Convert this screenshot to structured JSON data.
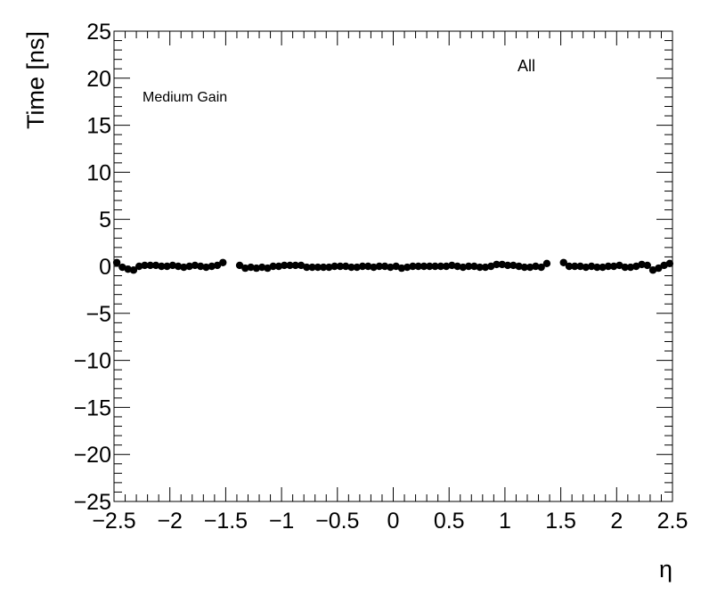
{
  "chart_data": {
    "type": "scatter",
    "title": "",
    "xlabel": "η",
    "ylabel": "Time [ns]",
    "xlim": [
      -2.5,
      2.5
    ],
    "ylim": [
      -25,
      25
    ],
    "x_ticks": [
      -2.5,
      -2,
      -1.5,
      -1,
      -0.5,
      0,
      0.5,
      1,
      1.5,
      2,
      2.5
    ],
    "x_tick_labels": [
      "−2.5",
      "−2",
      "−1.5",
      "−1",
      "−0.5",
      "0",
      "0.5",
      "1",
      "1.5",
      "2",
      "2.5"
    ],
    "y_ticks": [
      -25,
      -20,
      -15,
      -10,
      -5,
      0,
      5,
      10,
      15,
      20,
      25
    ],
    "y_tick_labels": [
      "−25",
      "−20",
      "−15",
      "−10",
      "−5",
      "0",
      "5",
      "10",
      "15",
      "20",
      "25"
    ],
    "grid": false,
    "marker_color": "#000000",
    "annotations": [
      "Medium Gain",
      "All"
    ],
    "x_start": -2.475,
    "x_step": 0.05,
    "values": [
      0.4,
      -0.1,
      -0.3,
      -0.4,
      0.0,
      0.1,
      0.1,
      0.1,
      0.0,
      0.0,
      0.1,
      0.0,
      -0.1,
      0.0,
      0.1,
      0.0,
      -0.1,
      0.0,
      0.1,
      0.4,
      null,
      null,
      0.1,
      -0.2,
      -0.1,
      -0.2,
      -0.1,
      -0.2,
      0.0,
      0.0,
      0.1,
      0.1,
      0.1,
      0.1,
      -0.1,
      -0.1,
      -0.1,
      -0.1,
      -0.1,
      0.0,
      0.0,
      0.0,
      -0.1,
      -0.1,
      0.0,
      0.0,
      -0.1,
      0.0,
      0.0,
      -0.1,
      0.0,
      -0.2,
      -0.1,
      0.0,
      0.0,
      0.0,
      0.0,
      0.0,
      0.0,
      0.0,
      0.1,
      0.0,
      -0.1,
      0.0,
      0.0,
      -0.1,
      -0.1,
      0.0,
      0.2,
      0.2,
      0.1,
      0.1,
      0.0,
      -0.1,
      -0.1,
      0.0,
      -0.1,
      0.3,
      null,
      null,
      0.4,
      0.0,
      0.0,
      0.0,
      -0.1,
      0.0,
      -0.1,
      -0.1,
      0.0,
      0.0,
      0.1,
      -0.1,
      -0.1,
      0.0,
      0.2,
      0.1,
      -0.4,
      -0.2,
      0.1,
      0.3
    ]
  }
}
